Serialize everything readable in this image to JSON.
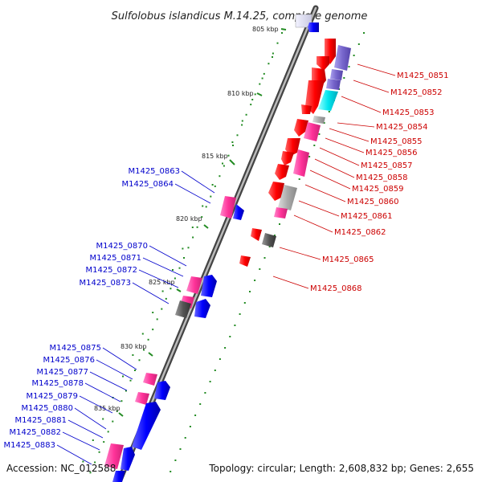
{
  "title": "Sulfolobus islandicus M.14.25, complete genome",
  "footer": {
    "accession": "Accession: NC_012588",
    "topology": "Topology: circular; Length: 2,608,832 bp; Genes: 2,655"
  },
  "scale_labels": [
    "805 kbp",
    "810 kbp",
    "815 kbp",
    "820 kbp",
    "825 kbp",
    "830 kbp",
    "835 kbp"
  ],
  "colors": {
    "backbone": "#666666",
    "forward_strand_label": "#0000cc",
    "reverse_strand_label": "#cc0000",
    "gene_red": "#ff0000",
    "gene_blue": "#0000ff",
    "gene_pink": "#ff3399",
    "gene_purple": "#7766cc",
    "gene_cyan": "#00e5ee",
    "gene_grey": "#aaaaaa",
    "gene_darkgrey": "#555555",
    "tick_green": "#228b22"
  },
  "genes_right": [
    "M1425_0851",
    "M1425_0852",
    "M1425_0853",
    "M1425_0854",
    "M1425_0855",
    "M1425_0856",
    "M1425_0857",
    "M1425_0858",
    "M1425_0859",
    "M1425_0860",
    "M1425_0861",
    "M1425_0862",
    "M1425_0865",
    "M1425_0868"
  ],
  "genes_left": [
    "M1425_0863",
    "M1425_0864",
    "M1425_0870",
    "M1425_0871",
    "M1425_0872",
    "M1425_0873",
    "M1425_0875",
    "M1425_0876",
    "M1425_0877",
    "M1425_0878",
    "M1425_0879",
    "M1425_0880",
    "M1425_0881",
    "M1425_0882",
    "M1425_0883"
  ]
}
